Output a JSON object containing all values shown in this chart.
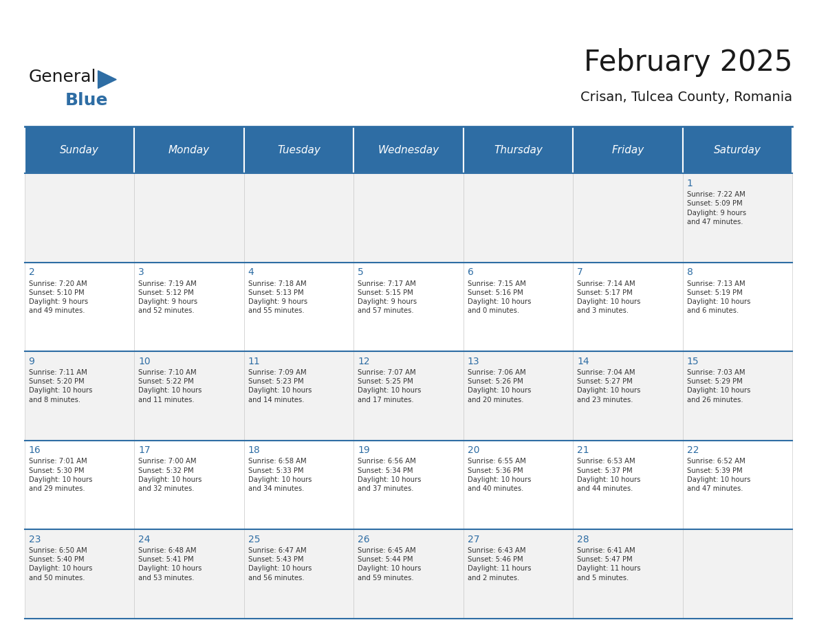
{
  "title": "February 2025",
  "subtitle": "Crisan, Tulcea County, Romania",
  "header_bg": "#2E6DA4",
  "header_text": "#FFFFFF",
  "cell_bg_odd": "#F2F2F2",
  "cell_bg_even": "#FFFFFF",
  "day_headers": [
    "Sunday",
    "Monday",
    "Tuesday",
    "Wednesday",
    "Thursday",
    "Friday",
    "Saturday"
  ],
  "logo_text1": "General",
  "logo_text2": "Blue",
  "logo_color1": "#1a1a1a",
  "logo_color2": "#2E6DA4",
  "weeks": [
    [
      {
        "day": null,
        "info": null
      },
      {
        "day": null,
        "info": null
      },
      {
        "day": null,
        "info": null
      },
      {
        "day": null,
        "info": null
      },
      {
        "day": null,
        "info": null
      },
      {
        "day": null,
        "info": null
      },
      {
        "day": 1,
        "info": "Sunrise: 7:22 AM\nSunset: 5:09 PM\nDaylight: 9 hours\nand 47 minutes."
      }
    ],
    [
      {
        "day": 2,
        "info": "Sunrise: 7:20 AM\nSunset: 5:10 PM\nDaylight: 9 hours\nand 49 minutes."
      },
      {
        "day": 3,
        "info": "Sunrise: 7:19 AM\nSunset: 5:12 PM\nDaylight: 9 hours\nand 52 minutes."
      },
      {
        "day": 4,
        "info": "Sunrise: 7:18 AM\nSunset: 5:13 PM\nDaylight: 9 hours\nand 55 minutes."
      },
      {
        "day": 5,
        "info": "Sunrise: 7:17 AM\nSunset: 5:15 PM\nDaylight: 9 hours\nand 57 minutes."
      },
      {
        "day": 6,
        "info": "Sunrise: 7:15 AM\nSunset: 5:16 PM\nDaylight: 10 hours\nand 0 minutes."
      },
      {
        "day": 7,
        "info": "Sunrise: 7:14 AM\nSunset: 5:17 PM\nDaylight: 10 hours\nand 3 minutes."
      },
      {
        "day": 8,
        "info": "Sunrise: 7:13 AM\nSunset: 5:19 PM\nDaylight: 10 hours\nand 6 minutes."
      }
    ],
    [
      {
        "day": 9,
        "info": "Sunrise: 7:11 AM\nSunset: 5:20 PM\nDaylight: 10 hours\nand 8 minutes."
      },
      {
        "day": 10,
        "info": "Sunrise: 7:10 AM\nSunset: 5:22 PM\nDaylight: 10 hours\nand 11 minutes."
      },
      {
        "day": 11,
        "info": "Sunrise: 7:09 AM\nSunset: 5:23 PM\nDaylight: 10 hours\nand 14 minutes."
      },
      {
        "day": 12,
        "info": "Sunrise: 7:07 AM\nSunset: 5:25 PM\nDaylight: 10 hours\nand 17 minutes."
      },
      {
        "day": 13,
        "info": "Sunrise: 7:06 AM\nSunset: 5:26 PM\nDaylight: 10 hours\nand 20 minutes."
      },
      {
        "day": 14,
        "info": "Sunrise: 7:04 AM\nSunset: 5:27 PM\nDaylight: 10 hours\nand 23 minutes."
      },
      {
        "day": 15,
        "info": "Sunrise: 7:03 AM\nSunset: 5:29 PM\nDaylight: 10 hours\nand 26 minutes."
      }
    ],
    [
      {
        "day": 16,
        "info": "Sunrise: 7:01 AM\nSunset: 5:30 PM\nDaylight: 10 hours\nand 29 minutes."
      },
      {
        "day": 17,
        "info": "Sunrise: 7:00 AM\nSunset: 5:32 PM\nDaylight: 10 hours\nand 32 minutes."
      },
      {
        "day": 18,
        "info": "Sunrise: 6:58 AM\nSunset: 5:33 PM\nDaylight: 10 hours\nand 34 minutes."
      },
      {
        "day": 19,
        "info": "Sunrise: 6:56 AM\nSunset: 5:34 PM\nDaylight: 10 hours\nand 37 minutes."
      },
      {
        "day": 20,
        "info": "Sunrise: 6:55 AM\nSunset: 5:36 PM\nDaylight: 10 hours\nand 40 minutes."
      },
      {
        "day": 21,
        "info": "Sunrise: 6:53 AM\nSunset: 5:37 PM\nDaylight: 10 hours\nand 44 minutes."
      },
      {
        "day": 22,
        "info": "Sunrise: 6:52 AM\nSunset: 5:39 PM\nDaylight: 10 hours\nand 47 minutes."
      }
    ],
    [
      {
        "day": 23,
        "info": "Sunrise: 6:50 AM\nSunset: 5:40 PM\nDaylight: 10 hours\nand 50 minutes."
      },
      {
        "day": 24,
        "info": "Sunrise: 6:48 AM\nSunset: 5:41 PM\nDaylight: 10 hours\nand 53 minutes."
      },
      {
        "day": 25,
        "info": "Sunrise: 6:47 AM\nSunset: 5:43 PM\nDaylight: 10 hours\nand 56 minutes."
      },
      {
        "day": 26,
        "info": "Sunrise: 6:45 AM\nSunset: 5:44 PM\nDaylight: 10 hours\nand 59 minutes."
      },
      {
        "day": 27,
        "info": "Sunrise: 6:43 AM\nSunset: 5:46 PM\nDaylight: 11 hours\nand 2 minutes."
      },
      {
        "day": 28,
        "info": "Sunrise: 6:41 AM\nSunset: 5:47 PM\nDaylight: 11 hours\nand 5 minutes."
      },
      {
        "day": null,
        "info": null
      }
    ]
  ]
}
